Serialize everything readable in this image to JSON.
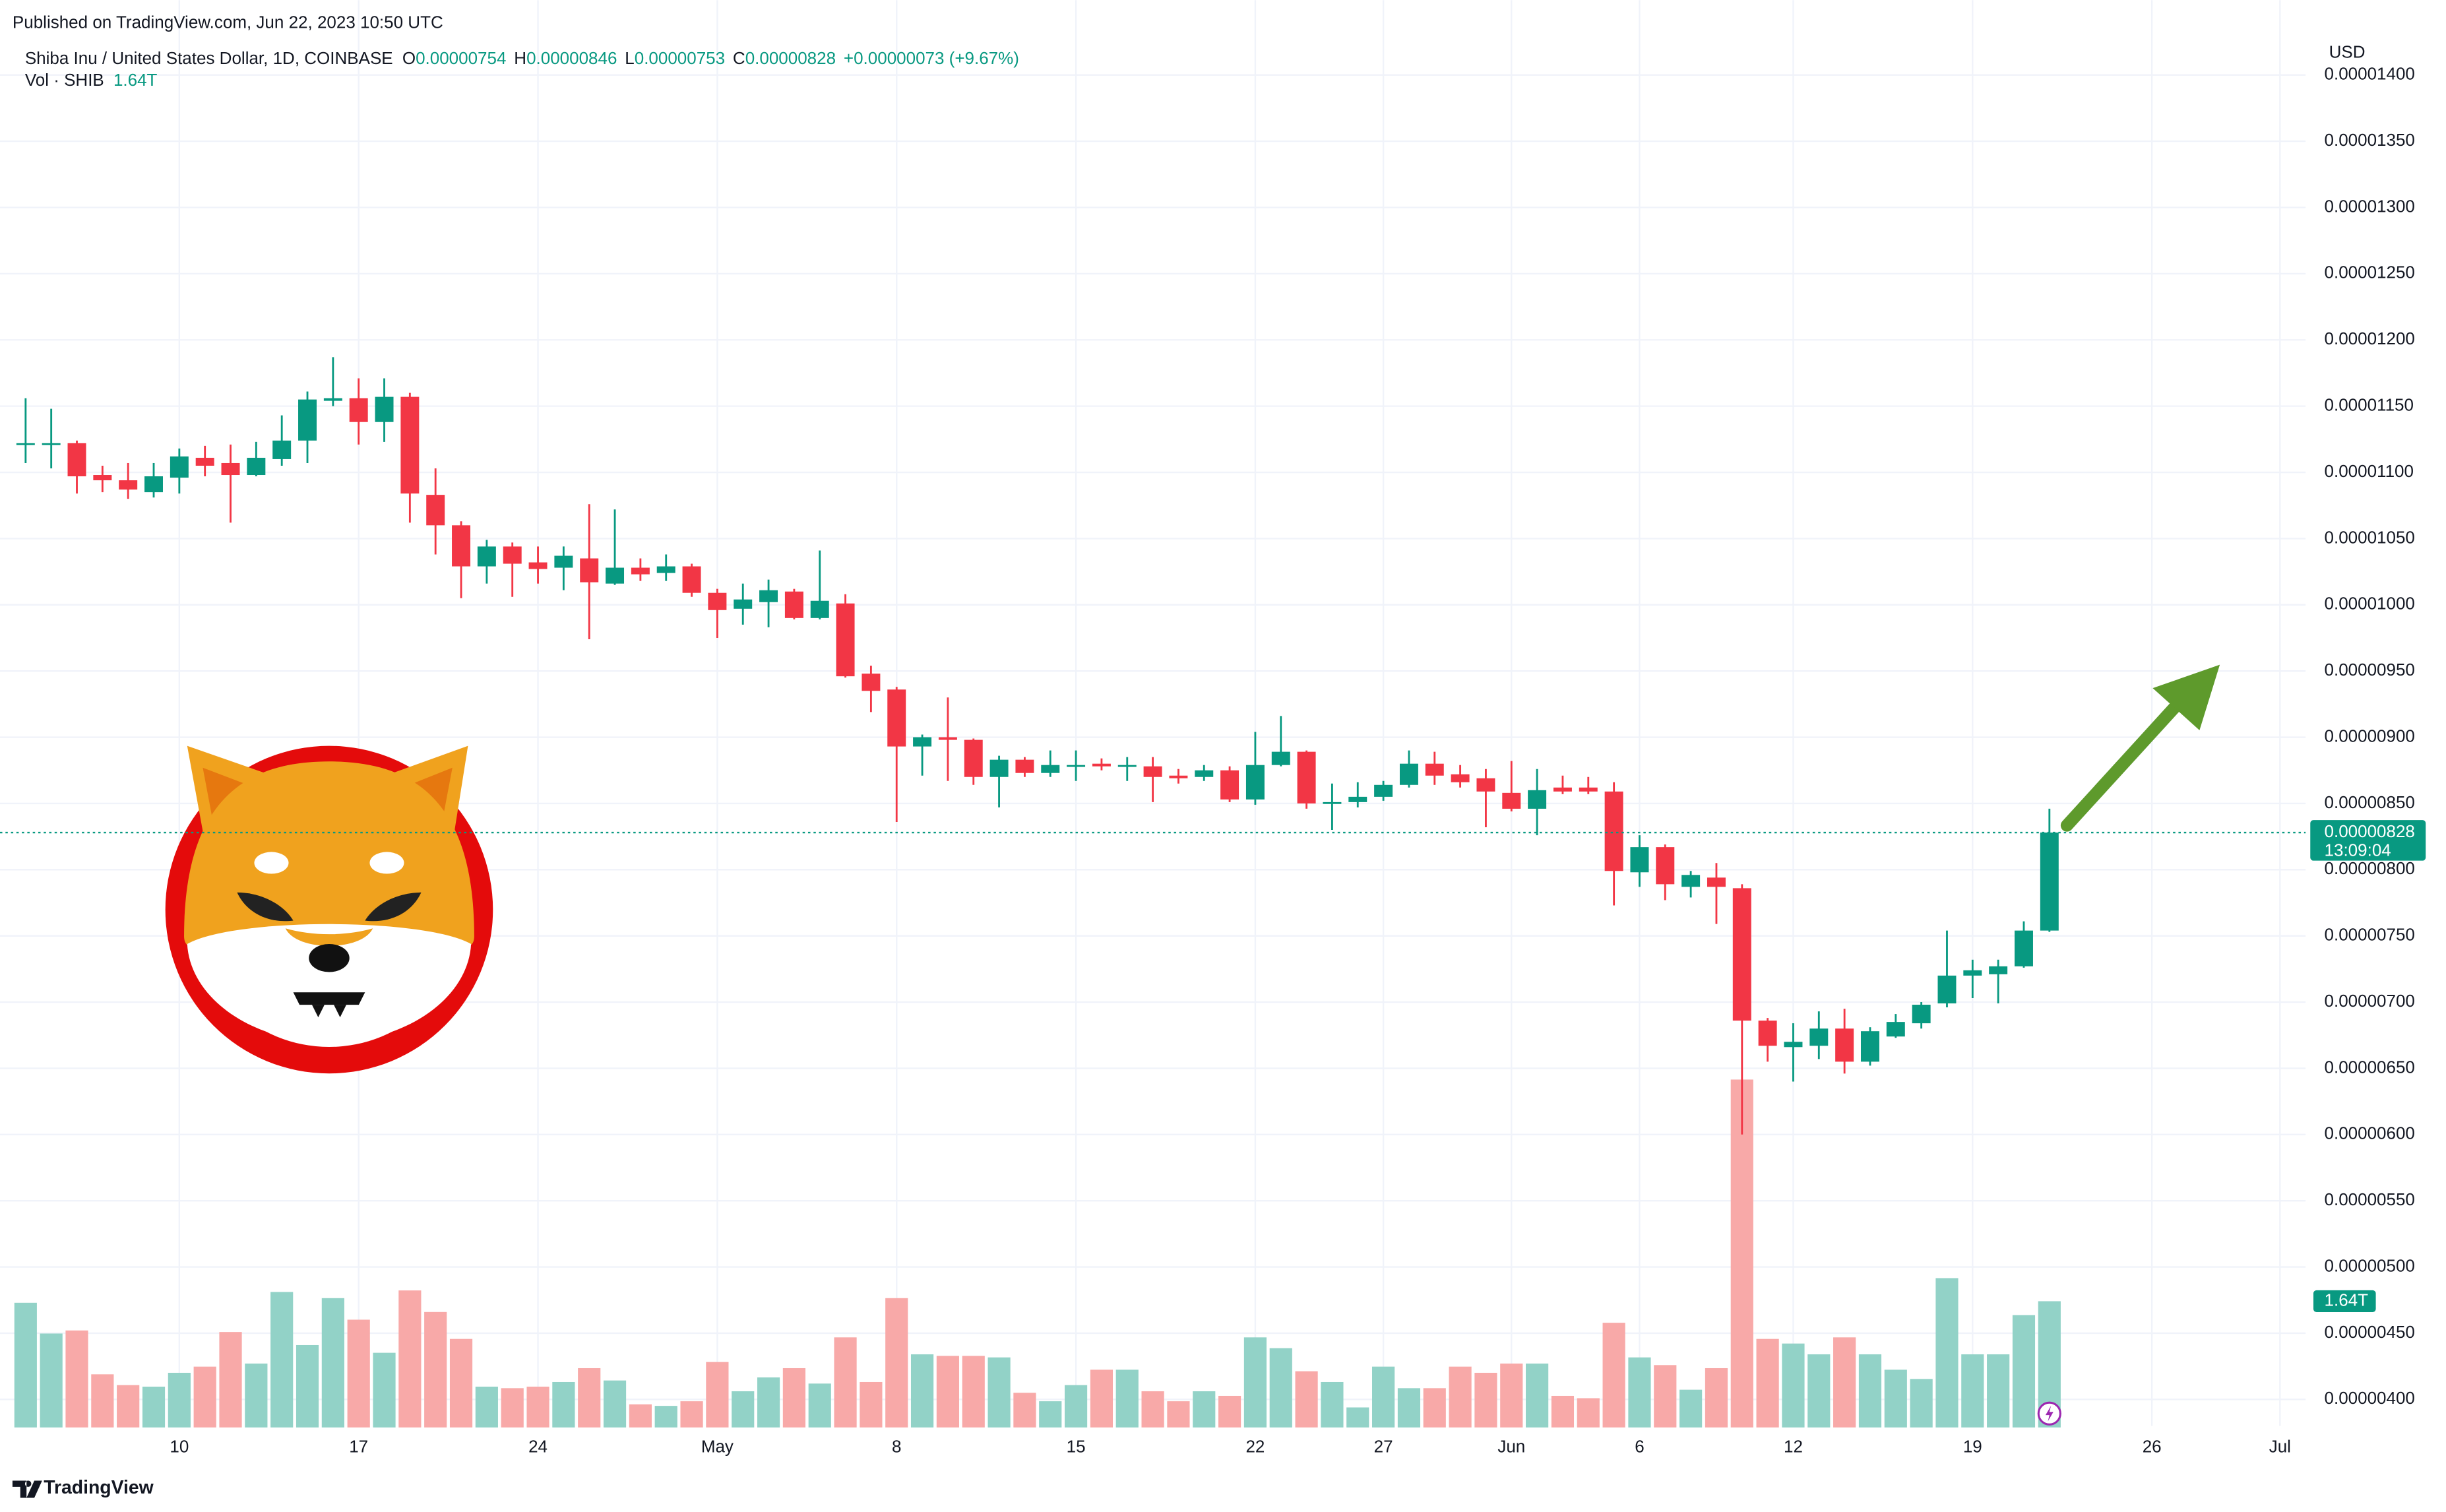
{
  "header": {
    "published": "Published on TradingView.com, Jun 22, 2023 10:50 UTC",
    "symbol": "Shiba Inu / United States Dollar, 1D, COINBASE",
    "ohlc": [
      {
        "label": "O",
        "value": "0.00000754"
      },
      {
        "label": "H",
        "value": "0.00000846"
      },
      {
        "label": "L",
        "value": "0.00000753"
      },
      {
        "label": "C",
        "value": "0.00000828"
      }
    ],
    "change": "+0.00000073 (+9.67%)",
    "volume_title": "Vol · SHIB",
    "volume_value": "1.64T"
  },
  "footer": {
    "brand": "TradingView"
  },
  "chart_data": {
    "type": "candlestick",
    "yaxis_label": "USD",
    "x": [
      "2023-04-04",
      "2023-04-05",
      "2023-04-06",
      "2023-04-07",
      "2023-04-08",
      "2023-04-09",
      "2023-04-10",
      "2023-04-11",
      "2023-04-12",
      "2023-04-13",
      "2023-04-14",
      "2023-04-15",
      "2023-04-16",
      "2023-04-17",
      "2023-04-18",
      "2023-04-19",
      "2023-04-20",
      "2023-04-21",
      "2023-04-22",
      "2023-04-23",
      "2023-04-24",
      "2023-04-25",
      "2023-04-26",
      "2023-04-27",
      "2023-04-28",
      "2023-04-29",
      "2023-04-30",
      "2023-05-01",
      "2023-05-02",
      "2023-05-03",
      "2023-05-04",
      "2023-05-05",
      "2023-05-06",
      "2023-05-07",
      "2023-05-08",
      "2023-05-09",
      "2023-05-10",
      "2023-05-11",
      "2023-05-12",
      "2023-05-13",
      "2023-05-14",
      "2023-05-15",
      "2023-05-16",
      "2023-05-17",
      "2023-05-18",
      "2023-05-19",
      "2023-05-20",
      "2023-05-21",
      "2023-05-22",
      "2023-05-23",
      "2023-05-24",
      "2023-05-25",
      "2023-05-26",
      "2023-05-27",
      "2023-05-28",
      "2023-05-29",
      "2023-05-30",
      "2023-05-31",
      "2023-06-01",
      "2023-06-02",
      "2023-06-03",
      "2023-06-04",
      "2023-06-05",
      "2023-06-06",
      "2023-06-07",
      "2023-06-08",
      "2023-06-09",
      "2023-06-10",
      "2023-06-11",
      "2023-06-12",
      "2023-06-13",
      "2023-06-14",
      "2023-06-15",
      "2023-06-16",
      "2023-06-17",
      "2023-06-18",
      "2023-06-19",
      "2023-06-20",
      "2023-06-21",
      "2023-06-22"
    ],
    "open": [
      1.121e-05,
      1.121e-05,
      1.122e-05,
      1.098e-05,
      1.094e-05,
      1.085e-05,
      1.096e-05,
      1.111e-05,
      1.107e-05,
      1.098e-05,
      1.11e-05,
      1.124e-05,
      1.154e-05,
      1.156e-05,
      1.138e-05,
      1.157e-05,
      1.083e-05,
      1.06e-05,
      1.029e-05,
      1.044e-05,
      1.032e-05,
      1.028e-05,
      1.035e-05,
      1.016e-05,
      1.028e-05,
      1.024e-05,
      1.029e-05,
      1.009e-05,
      9.97e-06,
      1.002e-05,
      1.01e-05,
      9.9e-06,
      1.001e-05,
      9.48e-06,
      9.36e-06,
      8.93e-06,
      9e-06,
      8.98e-06,
      8.7e-06,
      8.83e-06,
      8.73e-06,
      8.78e-06,
      8.8e-06,
      8.78e-06,
      8.78e-06,
      8.71e-06,
      8.7e-06,
      8.75e-06,
      8.53e-06,
      8.79e-06,
      8.89e-06,
      8.5e-06,
      8.51e-06,
      8.55e-06,
      8.64e-06,
      8.8e-06,
      8.72e-06,
      8.69e-06,
      8.58e-06,
      8.46e-06,
      8.62e-06,
      8.62e-06,
      8.59e-06,
      7.98e-06,
      8.17e-06,
      7.87e-06,
      7.94e-06,
      7.86e-06,
      6.86e-06,
      6.66e-06,
      6.67e-06,
      6.8e-06,
      6.55e-06,
      6.74e-06,
      6.84e-06,
      6.99e-06,
      7.2e-06,
      7.21e-06,
      7.27e-06,
      7.54e-06
    ],
    "high": [
      1.156e-05,
      1.148e-05,
      1.124e-05,
      1.105e-05,
      1.107e-05,
      1.107e-05,
      1.118e-05,
      1.12e-05,
      1.121e-05,
      1.123e-05,
      1.143e-05,
      1.161e-05,
      1.187e-05,
      1.171e-05,
      1.171e-05,
      1.16e-05,
      1.103e-05,
      1.063e-05,
      1.049e-05,
      1.047e-05,
      1.044e-05,
      1.044e-05,
      1.076e-05,
      1.072e-05,
      1.035e-05,
      1.038e-05,
      1.031e-05,
      1.012e-05,
      1.016e-05,
      1.019e-05,
      1.012e-05,
      1.041e-05,
      1.008e-05,
      9.54e-06,
      9.38e-06,
      9.02e-06,
      9.3e-06,
      8.99e-06,
      8.86e-06,
      8.85e-06,
      8.9e-06,
      8.9e-06,
      8.84e-06,
      8.85e-06,
      8.85e-06,
      8.76e-06,
      8.79e-06,
      8.78e-06,
      9.04e-06,
      9.16e-06,
      8.9e-06,
      8.65e-06,
      8.66e-06,
      8.67e-06,
      8.9e-06,
      8.89e-06,
      8.79e-06,
      8.76e-06,
      8.82e-06,
      8.76e-06,
      8.71e-06,
      8.7e-06,
      8.66e-06,
      8.26e-06,
      8.19e-06,
      7.99e-06,
      8.05e-06,
      7.89e-06,
      6.88e-06,
      6.84e-06,
      6.93e-06,
      6.95e-06,
      6.81e-06,
      6.91e-06,
      7e-06,
      7.54e-06,
      7.32e-06,
      7.32e-06,
      7.61e-06,
      8.46e-06
    ],
    "low": [
      1.107e-05,
      1.103e-05,
      1.084e-05,
      1.085e-05,
      1.08e-05,
      1.081e-05,
      1.084e-05,
      1.097e-05,
      1.062e-05,
      1.097e-05,
      1.105e-05,
      1.107e-05,
      1.15e-05,
      1.121e-05,
      1.123e-05,
      1.062e-05,
      1.038e-05,
      1.005e-05,
      1.016e-05,
      1.006e-05,
      1.016e-05,
      1.011e-05,
      9.74e-06,
      1.015e-05,
      1.018e-05,
      1.018e-05,
      1.006e-05,
      9.75e-06,
      9.85e-06,
      9.83e-06,
      9.89e-06,
      9.89e-06,
      9.45e-06,
      9.19e-06,
      8.36e-06,
      8.71e-06,
      8.67e-06,
      8.64e-06,
      8.47e-06,
      8.7e-06,
      8.7e-06,
      8.67e-06,
      8.75e-06,
      8.67e-06,
      8.51e-06,
      8.65e-06,
      8.67e-06,
      8.51e-06,
      8.49e-06,
      8.78e-06,
      8.46e-06,
      8.3e-06,
      8.47e-06,
      8.52e-06,
      8.62e-06,
      8.64e-06,
      8.62e-06,
      8.32e-06,
      8.44e-06,
      8.26e-06,
      8.57e-06,
      8.57e-06,
      7.73e-06,
      7.87e-06,
      7.77e-06,
      7.79e-06,
      7.59e-06,
      6e-06,
      6.55e-06,
      6.4e-06,
      6.57e-06,
      6.46e-06,
      6.52e-06,
      6.73e-06,
      6.8e-06,
      6.96e-06,
      7.03e-06,
      6.99e-06,
      7.26e-06,
      7.53e-06
    ],
    "close": [
      1.122e-05,
      1.122e-05,
      1.097e-05,
      1.094e-05,
      1.087e-05,
      1.097e-05,
      1.112e-05,
      1.105e-05,
      1.098e-05,
      1.111e-05,
      1.124e-05,
      1.155e-05,
      1.156e-05,
      1.138e-05,
      1.157e-05,
      1.084e-05,
      1.06e-05,
      1.029e-05,
      1.044e-05,
      1.031e-05,
      1.027e-05,
      1.037e-05,
      1.017e-05,
      1.028e-05,
      1.023e-05,
      1.029e-05,
      1.009e-05,
      9.96e-06,
      1.004e-05,
      1.011e-05,
      9.9e-06,
      1.003e-05,
      9.46e-06,
      9.35e-06,
      8.93e-06,
      9e-06,
      8.98e-06,
      8.7e-06,
      8.83e-06,
      8.73e-06,
      8.79e-06,
      8.79e-06,
      8.78e-06,
      8.79e-06,
      8.7e-06,
      8.69e-06,
      8.75e-06,
      8.53e-06,
      8.79e-06,
      8.89e-06,
      8.5e-06,
      8.51e-06,
      8.55e-06,
      8.64e-06,
      8.8e-06,
      8.71e-06,
      8.66e-06,
      8.59e-06,
      8.46e-06,
      8.6e-06,
      8.59e-06,
      8.59e-06,
      7.99e-06,
      8.17e-06,
      7.89e-06,
      7.96e-06,
      7.87e-06,
      6.86e-06,
      6.67e-06,
      6.7e-06,
      6.8e-06,
      6.55e-06,
      6.78e-06,
      6.85e-06,
      6.98e-06,
      7.2e-06,
      7.24e-06,
      7.27e-06,
      7.54e-06,
      8.28e-06
    ],
    "volume": [
      1620000000000.0,
      1220000000000.0,
      1260000000000.0,
      690000000000.0,
      550000000000.0,
      530000000000.0,
      710000000000.0,
      790000000000.0,
      1240000000000.0,
      830000000000.0,
      1760000000000.0,
      1070000000000.0,
      1680000000000.0,
      1400000000000.0,
      970000000000.0,
      1780000000000.0,
      1500000000000.0,
      1150000000000.0,
      530000000000.0,
      510000000000.0,
      530000000000.0,
      590000000000.0,
      770000000000.0,
      610000000000.0,
      300000000000.0,
      280000000000.0,
      340000000000.0,
      850000000000.0,
      470000000000.0,
      650000000000.0,
      770000000000.0,
      570000000000.0,
      1170000000000.0,
      590000000000.0,
      1680000000000.0,
      950000000000.0,
      930000000000.0,
      930000000000.0,
      910000000000.0,
      450000000000.0,
      340000000000.0,
      550000000000.0,
      750000000000.0,
      750000000000.0,
      470000000000.0,
      340000000000.0,
      470000000000.0,
      410000000000.0,
      1170000000000.0,
      1030000000000.0,
      730000000000.0,
      590000000000.0,
      260000000000.0,
      790000000000.0,
      510000000000.0,
      510000000000.0,
      790000000000.0,
      710000000000.0,
      830000000000.0,
      830000000000.0,
      410000000000.0,
      380000000000.0,
      1360000000000.0,
      910000000000.0,
      810000000000.0,
      490000000000.0,
      770000000000.0,
      4520000000000.0,
      1150000000000.0,
      1090000000000.0,
      950000000000.0,
      1170000000000.0,
      950000000000.0,
      750000000000.0,
      630000000000.0,
      1940000000000.0,
      950000000000.0,
      950000000000.0,
      1460000000000.0,
      1640000000000.0
    ],
    "volume_label": "1.64T",
    "up_color": "#089981",
    "down_color": "#f23645",
    "volume_up_color": "#92d2c7",
    "volume_down_color": "#f8a9a8",
    "last_price": 8.28e-06,
    "countdown": "13:09:04",
    "xlim": [
      "2023-04-03",
      "2023-07-02"
    ],
    "xticks": [
      {
        "value": "2023-04-10",
        "label": "10"
      },
      {
        "value": "2023-04-17",
        "label": "17"
      },
      {
        "value": "2023-04-24",
        "label": "24"
      },
      {
        "value": "2023-05-01",
        "label": "May"
      },
      {
        "value": "2023-05-08",
        "label": "8"
      },
      {
        "value": "2023-05-15",
        "label": "15"
      },
      {
        "value": "2023-05-22",
        "label": "22"
      },
      {
        "value": "2023-05-27",
        "label": "27"
      },
      {
        "value": "2023-06-01",
        "label": "Jun"
      },
      {
        "value": "2023-06-06",
        "label": "6"
      },
      {
        "value": "2023-06-12",
        "label": "12"
      },
      {
        "value": "2023-06-19",
        "label": "19"
      },
      {
        "value": "2023-06-26",
        "label": "26"
      },
      {
        "value": "2023-07-01",
        "label": "Jul"
      }
    ],
    "ylim": [
      3.8e-06,
      1.41e-05
    ],
    "yticks": [
      {
        "value": 4e-06,
        "label": "0.00000400"
      },
      {
        "value": 4.5e-06,
        "label": "0.00000450"
      },
      {
        "value": 5e-06,
        "label": "0.00000500"
      },
      {
        "value": 5.5e-06,
        "label": "0.00000550"
      },
      {
        "value": 6e-06,
        "label": "0.00000600"
      },
      {
        "value": 6.5e-06,
        "label": "0.00000650"
      },
      {
        "value": 7e-06,
        "label": "0.00000700"
      },
      {
        "value": 7.5e-06,
        "label": "0.00000750"
      },
      {
        "value": 8e-06,
        "label": "0.00000800"
      },
      {
        "value": 8.5e-06,
        "label": "0.00000850"
      },
      {
        "value": 9e-06,
        "label": "0.00000900"
      },
      {
        "value": 9.5e-06,
        "label": "0.00000950"
      },
      {
        "value": 1e-05,
        "label": "0.00001000"
      },
      {
        "value": 1.05e-05,
        "label": "0.00001050"
      },
      {
        "value": 1.1e-05,
        "label": "0.00001100"
      },
      {
        "value": 1.15e-05,
        "label": "0.00001150"
      },
      {
        "value": 1.2e-05,
        "label": "0.00001200"
      },
      {
        "value": 1.25e-05,
        "label": "0.00001250"
      },
      {
        "value": 1.3e-05,
        "label": "0.00001300"
      },
      {
        "value": 1.35e-05,
        "label": "0.00001350"
      },
      {
        "value": 1.4e-05,
        "label": "0.00001400"
      }
    ],
    "grid": true
  }
}
